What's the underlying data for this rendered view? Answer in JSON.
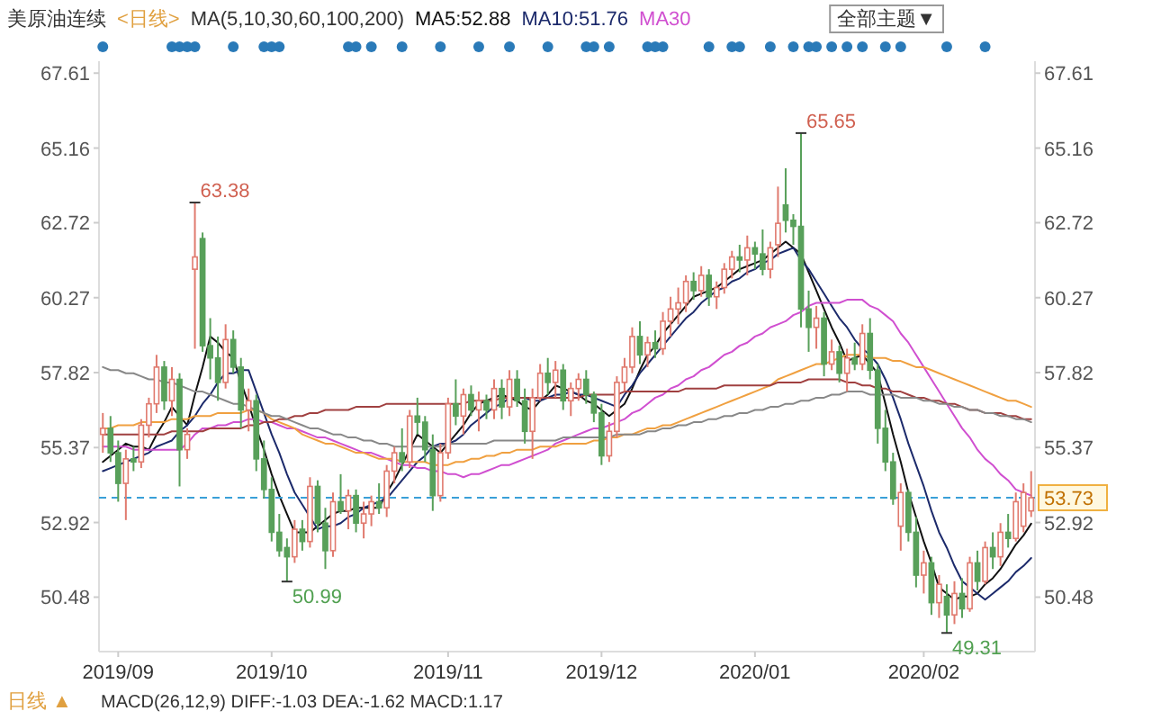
{
  "chart_data": {
    "type": "candlestick",
    "title": "美原油连续",
    "annotations": [
      "<日线>",
      "MA(5,10,30,60,100,200)",
      "全部主题▼",
      "日线 ▲",
      "MACD(26,12,9) DIFF:-1.03 DEA:-1.62 MACD:1.17",
      "63.38",
      "50.99",
      "65.65",
      "49.31"
    ],
    "categories": [
      null,
      null,
      "2019/09",
      null,
      null,
      null,
      null,
      null,
      null,
      null,
      null,
      null,
      null,
      null,
      null,
      null,
      null,
      null,
      null,
      null,
      null,
      null,
      "2019/10",
      null,
      null,
      null,
      null,
      null,
      null,
      null,
      null,
      null,
      null,
      null,
      null,
      null,
      null,
      null,
      null,
      null,
      null,
      null,
      null,
      null,
      null,
      "2019/11",
      null,
      null,
      null,
      null,
      null,
      null,
      null,
      null,
      null,
      null,
      null,
      null,
      null,
      null,
      null,
      null,
      null,
      null,
      null,
      "2019/12",
      null,
      null,
      null,
      null,
      null,
      null,
      null,
      null,
      null,
      null,
      null,
      null,
      null,
      null,
      null,
      null,
      null,
      null,
      null,
      "2020/01",
      null,
      null,
      null,
      null,
      null,
      null,
      null,
      null,
      null,
      null,
      null,
      null,
      null,
      null,
      null,
      null,
      null,
      null,
      null,
      null,
      null,
      "2020/02",
      null,
      null,
      null,
      null,
      null,
      null,
      null,
      null,
      null,
      null,
      null,
      null,
      null,
      null
    ],
    "ohlc": [
      [
        55.8,
        56.5,
        55.2,
        56.0
      ],
      [
        56.0,
        56.4,
        54.9,
        55.2
      ],
      [
        55.2,
        55.6,
        53.6,
        54.2
      ],
      [
        54.2,
        55.3,
        53.0,
        55.0
      ],
      [
        55.0,
        55.4,
        54.6,
        54.9
      ],
      [
        54.9,
        56.3,
        54.7,
        56.1
      ],
      [
        56.1,
        57.0,
        55.7,
        56.8
      ],
      [
        56.8,
        58.4,
        56.5,
        58.0
      ],
      [
        58.0,
        58.2,
        56.6,
        56.9
      ],
      [
        56.9,
        58.0,
        56.4,
        57.6
      ],
      [
        57.6,
        57.8,
        54.1,
        55.3
      ],
      [
        55.3,
        56.0,
        55.0,
        55.8
      ],
      [
        61.2,
        63.38,
        58.6,
        61.6
      ],
      [
        62.2,
        62.4,
        58.5,
        58.7
      ],
      [
        58.7,
        59.6,
        57.6,
        58.3
      ],
      [
        58.3,
        59.0,
        56.9,
        57.5
      ],
      [
        57.5,
        59.4,
        57.3,
        58.9
      ],
      [
        58.9,
        59.2,
        57.8,
        58.0
      ],
      [
        58.0,
        58.3,
        56.0,
        56.6
      ],
      [
        56.6,
        57.3,
        55.9,
        56.9
      ],
      [
        56.9,
        57.1,
        54.6,
        55.0
      ],
      [
        55.0,
        55.6,
        53.7,
        54.0
      ],
      [
        54.0,
        54.4,
        52.3,
        52.6
      ],
      [
        52.6,
        53.2,
        51.8,
        52.0
      ],
      [
        52.1,
        52.4,
        50.99,
        51.8
      ],
      [
        51.8,
        53.0,
        51.6,
        52.7
      ],
      [
        52.7,
        53.0,
        52.0,
        52.3
      ],
      [
        52.3,
        54.4,
        52.1,
        54.1
      ],
      [
        54.1,
        54.3,
        52.6,
        52.9
      ],
      [
        52.9,
        53.4,
        51.4,
        52.0
      ],
      [
        52.0,
        53.9,
        51.8,
        53.6
      ],
      [
        53.6,
        54.5,
        53.2,
        53.3
      ],
      [
        53.3,
        54.0,
        52.7,
        53.8
      ],
      [
        53.8,
        54.0,
        52.6,
        52.9
      ],
      [
        52.9,
        53.6,
        52.4,
        53.2
      ],
      [
        53.2,
        53.8,
        52.8,
        53.6
      ],
      [
        53.6,
        54.2,
        53.2,
        53.4
      ],
      [
        53.4,
        54.8,
        53.1,
        54.6
      ],
      [
        54.6,
        55.4,
        54.2,
        55.2
      ],
      [
        55.2,
        56.0,
        54.6,
        54.9
      ],
      [
        54.9,
        56.6,
        54.7,
        56.4
      ],
      [
        56.4,
        57.0,
        55.8,
        56.2
      ],
      [
        56.2,
        56.4,
        54.9,
        55.3
      ],
      [
        55.3,
        55.8,
        53.3,
        53.8
      ],
      [
        53.8,
        55.5,
        53.6,
        55.2
      ],
      [
        55.2,
        57.0,
        55.0,
        56.8
      ],
      [
        56.8,
        57.6,
        56.1,
        56.4
      ],
      [
        56.4,
        57.3,
        55.8,
        57.1
      ],
      [
        57.1,
        57.4,
        56.4,
        56.6
      ],
      [
        56.6,
        57.2,
        55.9,
        56.9
      ],
      [
        56.9,
        57.1,
        56.3,
        56.6
      ],
      [
        56.6,
        57.6,
        56.3,
        57.3
      ],
      [
        57.3,
        57.6,
        56.3,
        56.7
      ],
      [
        56.7,
        57.9,
        56.4,
        57.6
      ],
      [
        57.6,
        57.9,
        56.7,
        56.9
      ],
      [
        56.9,
        57.3,
        55.5,
        55.9
      ],
      [
        55.9,
        57.3,
        55.0,
        57.0
      ],
      [
        57.0,
        58.1,
        56.9,
        57.8
      ],
      [
        57.8,
        58.3,
        57.1,
        57.5
      ],
      [
        57.5,
        58.2,
        57.0,
        57.9
      ],
      [
        57.9,
        58.1,
        56.6,
        56.9
      ],
      [
        56.9,
        57.5,
        56.4,
        57.3
      ],
      [
        57.3,
        57.8,
        56.9,
        57.6
      ],
      [
        57.6,
        57.9,
        56.8,
        57.1
      ],
      [
        57.1,
        57.2,
        56.2,
        56.5
      ],
      [
        56.5,
        56.8,
        54.8,
        55.1
      ],
      [
        55.1,
        56.2,
        54.9,
        55.9
      ],
      [
        55.9,
        57.7,
        55.7,
        57.5
      ],
      [
        57.5,
        58.3,
        57.2,
        58.0
      ],
      [
        58.0,
        59.3,
        57.8,
        59.0
      ],
      [
        59.0,
        59.5,
        58.1,
        58.4
      ],
      [
        58.4,
        59.0,
        58.0,
        58.8
      ],
      [
        58.8,
        59.2,
        58.3,
        58.6
      ],
      [
        58.6,
        59.8,
        58.4,
        59.5
      ],
      [
        59.5,
        60.3,
        59.0,
        59.9
      ],
      [
        59.9,
        60.6,
        59.4,
        60.1
      ],
      [
        60.1,
        61.0,
        59.8,
        60.8
      ],
      [
        60.8,
        61.1,
        60.2,
        60.5
      ],
      [
        60.5,
        61.3,
        60.3,
        61.0
      ],
      [
        61.0,
        61.2,
        60.0,
        60.3
      ],
      [
        60.3,
        60.8,
        59.9,
        60.6
      ],
      [
        60.6,
        61.4,
        60.4,
        61.2
      ],
      [
        61.2,
        61.8,
        60.9,
        61.6
      ],
      [
        61.6,
        62.0,
        61.1,
        61.5
      ],
      [
        61.5,
        62.3,
        61.0,
        61.9
      ],
      [
        61.9,
        62.1,
        61.2,
        61.7
      ],
      [
        61.7,
        62.5,
        61.0,
        61.2
      ],
      [
        61.2,
        62.1,
        60.9,
        61.9
      ],
      [
        62.0,
        63.9,
        61.6,
        62.7
      ],
      [
        63.3,
        64.5,
        62.4,
        62.8
      ],
      [
        62.8,
        63.0,
        62.0,
        62.6
      ],
      [
        62.6,
        65.65,
        59.3,
        59.9
      ],
      [
        59.9,
        60.5,
        58.5,
        59.3
      ],
      [
        59.3,
        60.0,
        58.6,
        59.6
      ],
      [
        59.6,
        59.8,
        57.7,
        58.1
      ],
      [
        58.1,
        58.9,
        57.9,
        58.5
      ],
      [
        58.5,
        58.7,
        57.5,
        57.8
      ],
      [
        57.8,
        58.6,
        57.2,
        58.3
      ],
      [
        58.3,
        58.8,
        57.9,
        58.1
      ],
      [
        58.1,
        59.4,
        57.9,
        59.1
      ],
      [
        59.1,
        59.6,
        57.6,
        57.9
      ],
      [
        57.9,
        58.1,
        55.5,
        56.0
      ],
      [
        56.0,
        56.6,
        54.6,
        54.9
      ],
      [
        54.9,
        55.2,
        53.5,
        53.7
      ],
      [
        52.8,
        54.2,
        52.0,
        53.9
      ],
      [
        53.9,
        54.0,
        52.3,
        52.6
      ],
      [
        52.6,
        53.1,
        50.8,
        51.2
      ],
      [
        51.2,
        52.0,
        50.6,
        51.6
      ],
      [
        51.6,
        51.8,
        49.9,
        50.3
      ],
      [
        50.3,
        51.2,
        49.8,
        50.9
      ],
      [
        50.5,
        50.9,
        49.31,
        49.9
      ],
      [
        49.9,
        51.0,
        49.6,
        50.6
      ],
      [
        50.6,
        51.1,
        49.8,
        50.1
      ],
      [
        50.1,
        51.8,
        50.0,
        51.6
      ],
      [
        51.6,
        52.0,
        50.7,
        51.0
      ],
      [
        51.0,
        52.3,
        50.9,
        52.1
      ],
      [
        52.1,
        52.6,
        51.4,
        51.8
      ],
      [
        51.8,
        52.9,
        51.5,
        52.6
      ],
      [
        52.6,
        53.2,
        52.1,
        52.4
      ],
      [
        52.4,
        53.9,
        52.3,
        53.6
      ],
      [
        52.8,
        54.2,
        52.6,
        53.9
      ],
      [
        53.3,
        54.6,
        53.1,
        53.73
      ]
    ],
    "series": [
      {
        "type": "line",
        "name": "MA5:52.88",
        "color": "#111111",
        "values": [
          54.9,
          55.1,
          55.3,
          55.5,
          55.4,
          55.4,
          55.3,
          55.8,
          56.2,
          56.7,
          56.4,
          56.1,
          57.1,
          58.0,
          59.0,
          58.8,
          58.5,
          58.3,
          57.5,
          56.8,
          56.0,
          55.3,
          54.5,
          53.8,
          53.2,
          52.6,
          52.6,
          52.6,
          52.8,
          53.0,
          53.2,
          53.3,
          53.3,
          53.4,
          53.4,
          53.4,
          53.4,
          53.9,
          54.3,
          54.8,
          55.3,
          55.8,
          55.6,
          55.4,
          55.2,
          55.5,
          55.8,
          56.1,
          56.5,
          56.8,
          56.9,
          57.0,
          57.1,
          57.0,
          56.9,
          56.7,
          56.6,
          56.9,
          57.1,
          57.4,
          57.3,
          57.2,
          57.1,
          56.9,
          56.8,
          56.6,
          56.4,
          56.6,
          56.8,
          57.3,
          57.9,
          58.4,
          58.7,
          59.1,
          59.4,
          59.7,
          60.0,
          60.3,
          60.4,
          60.5,
          60.6,
          60.8,
          61.0,
          61.2,
          61.3,
          61.4,
          61.5,
          61.7,
          61.9,
          62.1,
          61.9,
          61.7,
          61.1,
          60.5,
          59.9,
          59.3,
          58.8,
          58.2,
          58.3,
          58.4,
          58.1,
          57.8,
          56.8,
          55.8,
          54.9,
          53.9,
          53.1,
          52.3,
          51.6,
          50.8,
          50.6,
          50.4,
          50.5,
          50.5,
          50.6,
          50.9,
          51.1,
          51.4,
          51.8,
          52.2,
          52.5,
          52.88
        ]
      },
      {
        "type": "line",
        "name": "MA10:51.76",
        "color": "#1c2a6b",
        "values": [
          54.6,
          54.7,
          54.8,
          54.9,
          55.0,
          55.1,
          55.2,
          55.4,
          55.5,
          55.6,
          55.9,
          56.1,
          56.4,
          56.8,
          57.1,
          57.5,
          57.8,
          57.8,
          57.9,
          57.9,
          57.2,
          56.5,
          55.8,
          55.2,
          54.5,
          53.9,
          53.5,
          53.1,
          52.7,
          52.8,
          52.8,
          52.9,
          53.1,
          53.2,
          53.4,
          53.5,
          53.6,
          53.7,
          54.0,
          54.3,
          54.6,
          54.9,
          55.1,
          55.4,
          55.5,
          55.5,
          55.6,
          55.8,
          56.1,
          56.3,
          56.5,
          56.7,
          56.8,
          57.0,
          57.0,
          57.0,
          56.9,
          56.9,
          57.0,
          57.1,
          57.1,
          57.2,
          57.1,
          57.1,
          57.0,
          56.9,
          56.8,
          56.7,
          57.1,
          57.4,
          57.8,
          58.1,
          58.4,
          58.7,
          59.0,
          59.3,
          59.6,
          59.8,
          60.1,
          60.3,
          60.5,
          60.6,
          60.8,
          60.9,
          61.1,
          61.2,
          61.4,
          61.5,
          61.7,
          61.8,
          61.9,
          61.5,
          61.2,
          60.8,
          60.4,
          60.0,
          59.6,
          59.3,
          58.9,
          58.6,
          58.4,
          58.1,
          57.6,
          57.0,
          56.3,
          55.5,
          54.8,
          54.1,
          53.3,
          52.6,
          52.1,
          51.5,
          51.0,
          50.8,
          50.6,
          50.4,
          50.6,
          50.8,
          51.0,
          51.3,
          51.5,
          51.76
        ]
      },
      {
        "type": "line",
        "name": "MA30",
        "color": "#d04fd0",
        "values": [
          55.4,
          55.4,
          55.4,
          55.4,
          55.3,
          55.3,
          55.3,
          55.3,
          55.3,
          55.3,
          55.3,
          55.5,
          55.8,
          56.0,
          56.0,
          56.1,
          56.1,
          56.2,
          56.2,
          56.3,
          56.3,
          56.2,
          56.2,
          56.1,
          56.0,
          56.0,
          55.9,
          55.8,
          55.7,
          55.7,
          55.6,
          55.5,
          55.4,
          55.3,
          55.2,
          55.2,
          55.1,
          55.0,
          54.9,
          54.8,
          54.8,
          54.7,
          54.7,
          54.6,
          54.6,
          54.5,
          54.5,
          54.4,
          54.5,
          54.5,
          54.6,
          54.7,
          54.8,
          54.8,
          54.9,
          55.0,
          55.1,
          55.2,
          55.3,
          55.5,
          55.6,
          55.7,
          55.8,
          55.9,
          56.0,
          56.0,
          56.1,
          56.2,
          56.3,
          56.5,
          56.6,
          56.8,
          57.0,
          57.1,
          57.3,
          57.4,
          57.6,
          57.7,
          57.9,
          58.0,
          58.2,
          58.4,
          58.5,
          58.7,
          58.8,
          59.0,
          59.1,
          59.3,
          59.4,
          59.5,
          59.7,
          59.8,
          60.0,
          60.1,
          60.1,
          60.1,
          60.1,
          60.2,
          60.2,
          60.2,
          60.0,
          59.9,
          59.7,
          59.5,
          59.1,
          58.8,
          58.4,
          58.0,
          57.6,
          57.2,
          56.8,
          56.4,
          56.0,
          55.7,
          55.3,
          55.0,
          54.8,
          54.5,
          54.3,
          54.0,
          53.9,
          53.8
        ]
      },
      {
        "type": "line",
        "color": "#f0a040",
        "values": [
          56.0,
          56.0,
          56.1,
          56.1,
          56.1,
          56.2,
          56.2,
          56.2,
          56.2,
          56.3,
          56.3,
          56.3,
          56.4,
          56.4,
          56.4,
          56.5,
          56.5,
          56.5,
          56.5,
          56.6,
          56.6,
          56.5,
          56.3,
          56.2,
          56.1,
          56.0,
          55.8,
          55.7,
          55.6,
          55.5,
          55.5,
          55.4,
          55.3,
          55.2,
          55.2,
          55.1,
          55.0,
          55.0,
          55.0,
          54.9,
          54.9,
          54.9,
          54.9,
          54.8,
          54.8,
          54.8,
          54.9,
          54.9,
          55.0,
          55.0,
          55.1,
          55.1,
          55.2,
          55.2,
          55.3,
          55.3,
          55.3,
          55.4,
          55.4,
          55.4,
          55.5,
          55.5,
          55.5,
          55.5,
          55.6,
          55.6,
          55.7,
          55.7,
          55.8,
          55.8,
          55.9,
          56.0,
          56.0,
          56.1,
          56.1,
          56.2,
          56.3,
          56.4,
          56.5,
          56.6,
          56.7,
          56.8,
          56.9,
          57.0,
          57.1,
          57.2,
          57.3,
          57.4,
          57.6,
          57.7,
          57.8,
          57.9,
          58.0,
          58.1,
          58.1,
          58.2,
          58.3,
          58.4,
          58.4,
          58.4,
          58.3,
          58.3,
          58.3,
          58.2,
          58.2,
          58.1,
          58.0,
          58.0,
          57.9,
          57.8,
          57.7,
          57.6,
          57.5,
          57.4,
          57.3,
          57.2,
          57.1,
          57.0,
          56.9,
          56.9,
          56.8,
          56.7
        ]
      },
      {
        "type": "line",
        "color": "#a04040",
        "values": [
          55.8,
          55.8,
          55.8,
          55.8,
          55.8,
          55.8,
          55.8,
          55.8,
          55.8,
          55.9,
          55.9,
          55.9,
          55.9,
          55.9,
          56.0,
          56.0,
          56.0,
          56.0,
          56.0,
          56.1,
          56.1,
          56.2,
          56.2,
          56.3,
          56.3,
          56.4,
          56.4,
          56.5,
          56.5,
          56.6,
          56.6,
          56.6,
          56.6,
          56.7,
          56.7,
          56.7,
          56.7,
          56.8,
          56.8,
          56.8,
          56.8,
          56.8,
          56.8,
          56.8,
          56.8,
          56.8,
          56.8,
          56.8,
          56.9,
          56.9,
          56.9,
          56.9,
          57.0,
          57.0,
          57.0,
          57.0,
          57.0,
          57.0,
          57.0,
          57.0,
          57.0,
          57.0,
          57.0,
          57.1,
          57.1,
          57.1,
          57.1,
          57.1,
          57.2,
          57.2,
          57.2,
          57.2,
          57.2,
          57.2,
          57.2,
          57.2,
          57.3,
          57.3,
          57.3,
          57.3,
          57.3,
          57.4,
          57.4,
          57.4,
          57.4,
          57.4,
          57.4,
          57.4,
          57.5,
          57.5,
          57.5,
          57.5,
          57.6,
          57.6,
          57.6,
          57.6,
          57.6,
          57.5,
          57.5,
          57.4,
          57.4,
          57.3,
          57.3,
          57.2,
          57.2,
          57.1,
          57.0,
          57.0,
          56.9,
          56.9,
          56.8,
          56.8,
          56.7,
          56.6,
          56.6,
          56.5,
          56.5,
          56.5,
          56.4,
          56.4,
          56.3,
          56.3
        ]
      },
      {
        "type": "line",
        "color": "#888888",
        "values": [
          58.0,
          57.9,
          57.9,
          57.8,
          57.8,
          57.7,
          57.6,
          57.6,
          57.5,
          57.5,
          57.4,
          57.3,
          57.2,
          57.2,
          57.1,
          57.0,
          56.9,
          56.8,
          56.8,
          56.7,
          56.6,
          56.5,
          56.4,
          56.4,
          56.3,
          56.2,
          56.1,
          56.0,
          56.0,
          55.9,
          55.8,
          55.8,
          55.7,
          55.7,
          55.6,
          55.6,
          55.5,
          55.5,
          55.4,
          55.4,
          55.4,
          55.4,
          55.4,
          55.4,
          55.4,
          55.5,
          55.5,
          55.5,
          55.5,
          55.5,
          55.5,
          55.6,
          55.6,
          55.6,
          55.6,
          55.6,
          55.6,
          55.6,
          55.6,
          55.6,
          55.7,
          55.7,
          55.7,
          55.7,
          55.7,
          55.7,
          55.7,
          55.8,
          55.8,
          55.8,
          55.8,
          55.9,
          55.9,
          56.0,
          56.0,
          56.1,
          56.1,
          56.2,
          56.2,
          56.3,
          56.3,
          56.4,
          56.4,
          56.5,
          56.5,
          56.6,
          56.6,
          56.7,
          56.7,
          56.8,
          56.8,
          56.9,
          56.9,
          57.0,
          57.0,
          57.1,
          57.1,
          57.2,
          57.2,
          57.2,
          57.1,
          57.1,
          57.1,
          57.1,
          57.0,
          57.0,
          57.0,
          56.9,
          56.9,
          56.8,
          56.8,
          56.7,
          56.7,
          56.6,
          56.6,
          56.5,
          56.5,
          56.4,
          56.4,
          56.3,
          56.3,
          56.2
        ]
      }
    ],
    "ylim": [
      48.7,
      68.0
    ],
    "yticks": [
      50.48,
      52.92,
      55.37,
      57.82,
      60.27,
      62.72,
      65.16,
      67.61
    ],
    "y2lim": [
      48.7,
      68.0
    ],
    "y2ticks": [
      50.48,
      52.92,
      55.37,
      57.82,
      60.27,
      62.72,
      65.16,
      67.61
    ],
    "ref_lines": [
      {
        "axis": "y2",
        "value": 53.73,
        "label": "53.73",
        "color": "#3aa0d8",
        "line_style": "dashed"
      }
    ],
    "legend": "top"
  }
}
